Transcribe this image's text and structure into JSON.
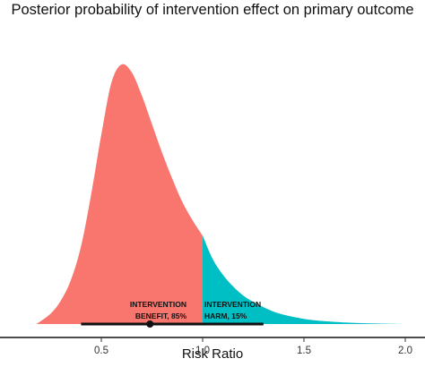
{
  "chart_data": {
    "type": "area",
    "title": "Posterior probability of intervention effect on primary outcome",
    "xlabel": "Risk Ratio",
    "ylabel": "",
    "xlim": [
      0.05,
      2.05
    ],
    "x_ticks": [
      0.5,
      1.0,
      1.5,
      2.0
    ],
    "x_tick_labels": [
      "0.5",
      "1.0",
      "1.5",
      "2.0"
    ],
    "density": {
      "x": [
        0.18,
        0.25,
        0.3,
        0.35,
        0.4,
        0.45,
        0.5,
        0.55,
        0.6,
        0.65,
        0.7,
        0.75,
        0.8,
        0.85,
        0.9,
        0.95,
        1.0,
        1.05,
        1.1,
        1.15,
        1.2,
        1.25,
        1.3,
        1.35,
        1.4,
        1.5,
        1.6,
        1.7,
        1.8,
        1.9,
        2.0
      ],
      "y": [
        0.0,
        0.04,
        0.09,
        0.17,
        0.3,
        0.5,
        0.73,
        0.93,
        1.0,
        0.97,
        0.88,
        0.77,
        0.66,
        0.56,
        0.47,
        0.4,
        0.34,
        0.25,
        0.19,
        0.145,
        0.11,
        0.085,
        0.065,
        0.048,
        0.036,
        0.02,
        0.011,
        0.006,
        0.003,
        0.0015,
        0.0
      ]
    },
    "threshold": 1.0,
    "regions": [
      {
        "name": "INTERVENTION BENEFIT",
        "probability": "85%",
        "label_lines": [
          "INTERVENTION",
          "BENEFIT, 85%"
        ],
        "color": "#f8766d"
      },
      {
        "name": "INTERVENTION HARM",
        "probability": "15%",
        "label_lines": [
          "INTERVENTION",
          "HARM, 15%"
        ],
        "color": "#00bfc4"
      }
    ],
    "interval": {
      "point_estimate": 0.74,
      "low": 0.4,
      "high": 1.3
    },
    "grid": false,
    "legend": "none"
  }
}
